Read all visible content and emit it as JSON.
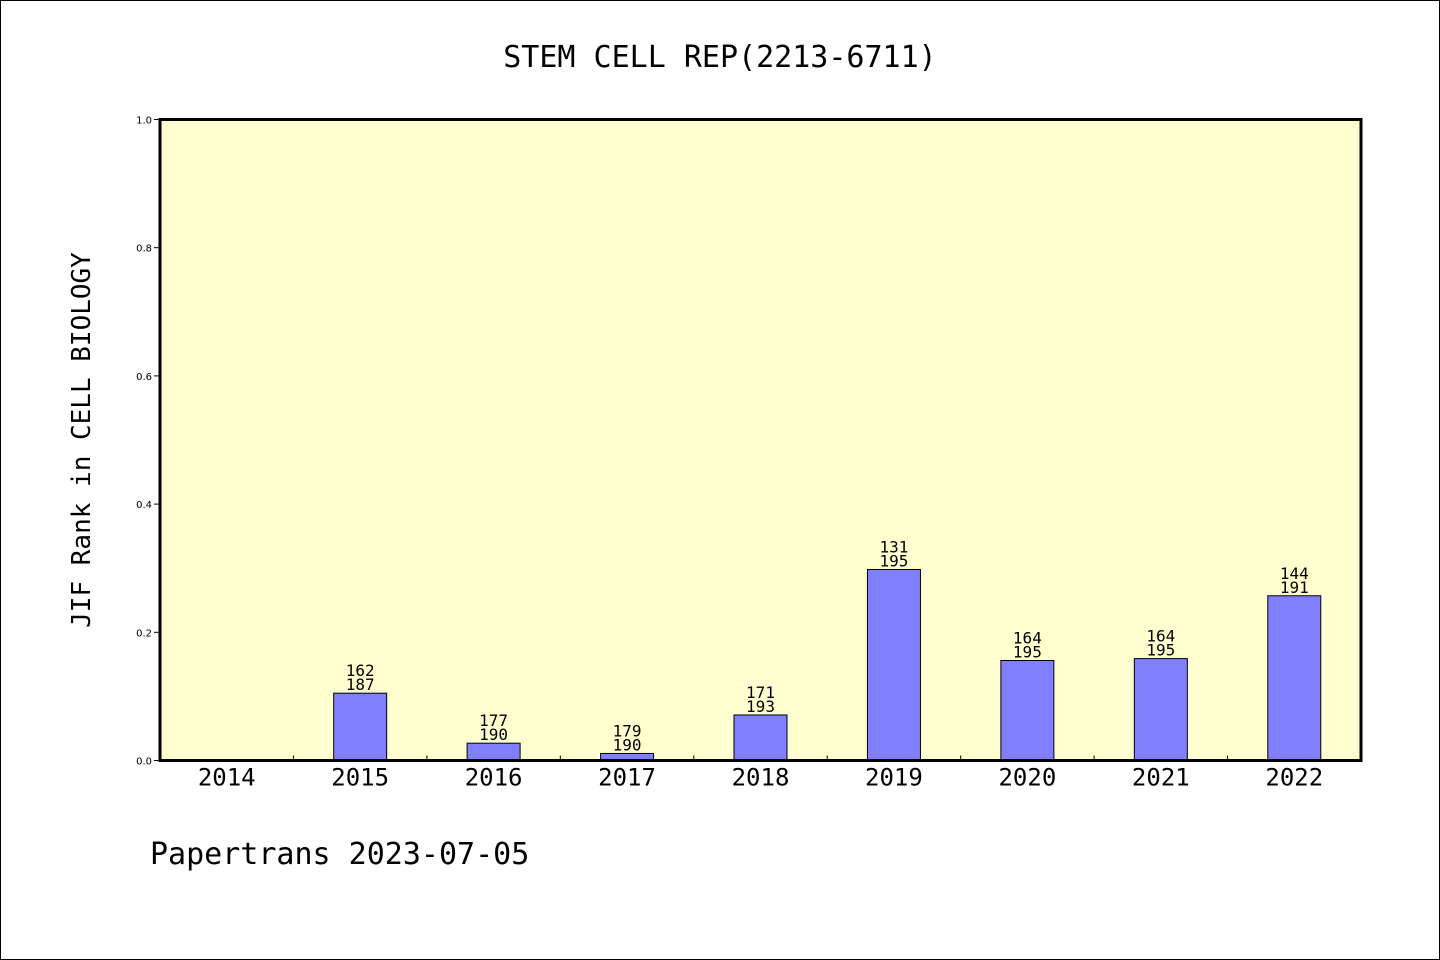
{
  "chart_data": {
    "type": "bar",
    "title": "STEM CELL REP(2213-6711)",
    "ylabel": "JIF Rank in CELL BIOLOGY",
    "xlabel": "",
    "ylim": [
      0,
      1.0
    ],
    "yticks": [
      "0.0",
      "0.2",
      "0.4",
      "0.6",
      "0.8",
      "1.0"
    ],
    "categories": [
      "2014",
      "2015",
      "2016",
      "2017",
      "2018",
      "2019",
      "2020",
      "2021",
      "2022"
    ],
    "values": [
      null,
      0.105,
      0.027,
      0.011,
      0.071,
      0.298,
      0.156,
      0.159,
      0.257
    ],
    "labels_top": [
      "",
      "162",
      "177",
      "179",
      "171",
      "131",
      "164",
      "164",
      "144"
    ],
    "labels_bottom": [
      "",
      "187",
      "190",
      "190",
      "193",
      "195",
      "195",
      "195",
      "191"
    ],
    "colors": {
      "plot_bg": "#ffffd0",
      "bar": "#8080ff"
    },
    "grid": false,
    "legend": "none"
  },
  "footer": "Papertrans 2023-07-05"
}
